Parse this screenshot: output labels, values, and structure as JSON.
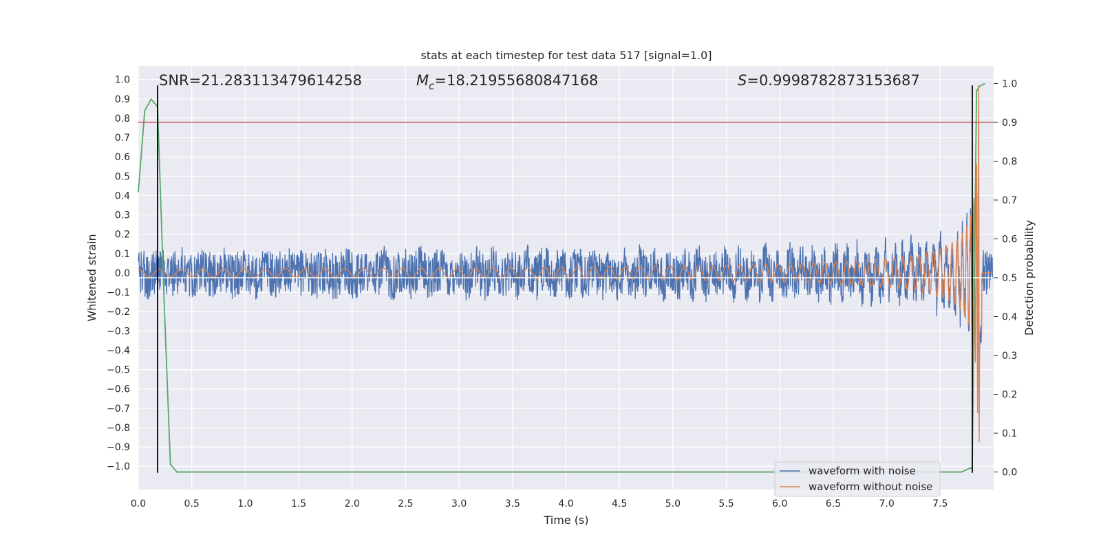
{
  "chart_data": {
    "type": "line",
    "title": "stats at each timestep for test data 517 [signal=1.0]",
    "xlabel": "Time (s)",
    "ylabel": "Whitened strain",
    "y2label": "Detection probability",
    "xlim": [
      0.0,
      8.0
    ],
    "ylim": [
      -1.12,
      1.07
    ],
    "y2lim": [
      -0.045,
      1.045
    ],
    "xticks": [
      "0.0",
      "0.5",
      "1.0",
      "1.5",
      "2.0",
      "2.5",
      "3.0",
      "3.5",
      "4.0",
      "4.5",
      "5.0",
      "5.5",
      "6.0",
      "6.5",
      "7.0",
      "7.5"
    ],
    "yticks": [
      "1.0",
      "0.9",
      "0.8",
      "0.7",
      "0.6",
      "0.5",
      "0.4",
      "0.3",
      "0.2",
      "0.1",
      "0.0",
      "−0.1",
      "−0.2",
      "−0.3",
      "−0.4",
      "−0.5",
      "−0.6",
      "−0.7",
      "−0.8",
      "−0.9",
      "−1.0"
    ],
    "y2ticks": [
      "1.0",
      "0.9",
      "0.8",
      "0.7",
      "0.6",
      "0.5",
      "0.4",
      "0.3",
      "0.2",
      "0.1",
      "0.0"
    ],
    "grid": true,
    "background": "#eaeaf2",
    "annotations": {
      "snr": "SNR=21.283113479614258",
      "mc_sym": "M",
      "mc_sub": "c",
      "mc_val": "=18.21955680847168",
      "s_sym": "S",
      "s_val": "=0.9998782873153687"
    },
    "legend": {
      "position": "lower right",
      "entries": [
        "waveform with noise",
        "waveform without noise"
      ]
    },
    "series": [
      {
        "name": "waveform with noise",
        "axis": "left",
        "color": "#4c72b0",
        "description_values": {
          "noise_amplitude": 0.12,
          "duration_s": 8.0,
          "merger_time_s": 7.87,
          "peak_amplitude": 1.0
        }
      },
      {
        "name": "waveform without noise",
        "axis": "left",
        "color": "#dd8452",
        "description_values": {
          "start_amplitude": 0.02,
          "start_frequency_hz": 7,
          "merger_time_s": 7.87,
          "peak_amplitude": 1.0
        }
      },
      {
        "axis": "right",
        "color": "#55a868",
        "x": [
          0.0,
          0.06,
          0.12,
          0.18,
          0.24,
          0.3,
          0.36,
          0.42,
          1.0,
          2.0,
          3.0,
          4.0,
          5.0,
          6.0,
          7.0,
          7.7,
          7.78,
          7.8,
          7.82,
          7.84,
          7.86,
          7.88,
          7.92
        ],
        "y": [
          0.72,
          0.93,
          0.96,
          0.94,
          0.45,
          0.02,
          0.0,
          0.0,
          0.0,
          0.0,
          0.0,
          0.0,
          0.0,
          0.0,
          0.0,
          0.0,
          0.01,
          0.01,
          0.5,
          0.98,
          0.99,
          0.995,
          1.0
        ]
      }
    ],
    "hlines": [
      {
        "axis": "right",
        "y": 0.9,
        "color": "#c44e52"
      },
      {
        "axis": "right",
        "y": 0.5,
        "color": "#ffffff"
      }
    ],
    "vlines": [
      {
        "x": 0.18,
        "color": "#000000"
      },
      {
        "x": 7.8,
        "color": "#000000"
      }
    ]
  }
}
